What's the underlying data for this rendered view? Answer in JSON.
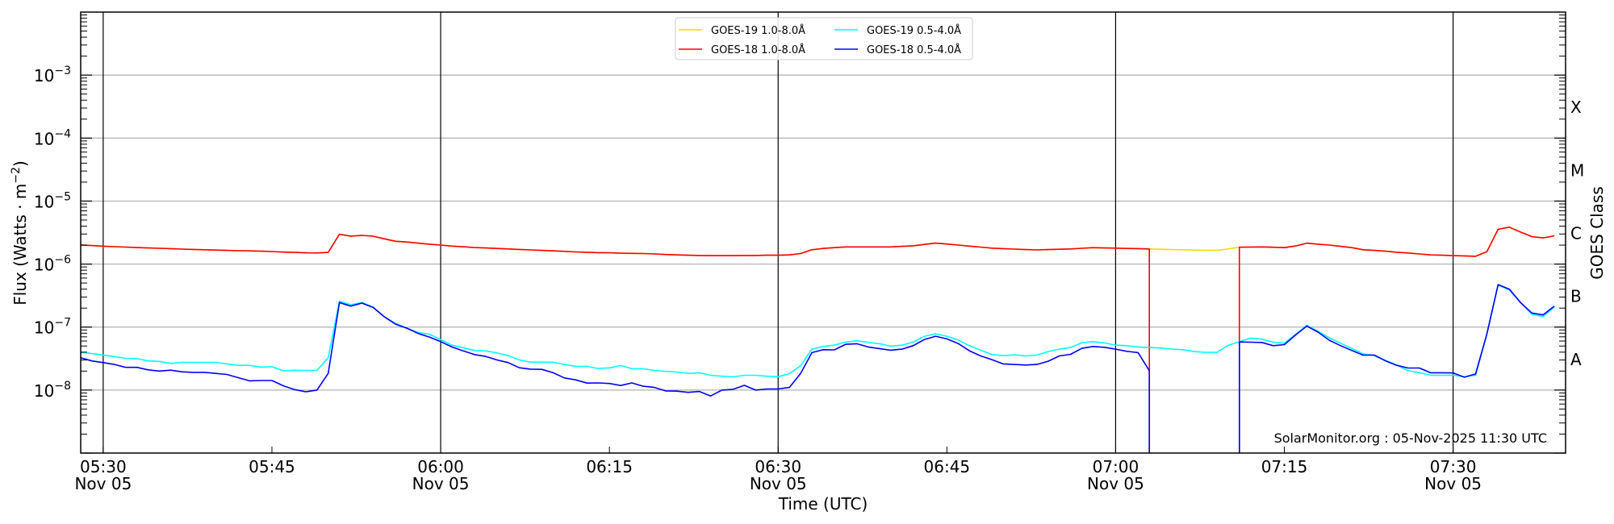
{
  "chart_data": {
    "type": "line",
    "title": "",
    "xlabel": "Time (UTC)",
    "ylabel": "Flux (Watts · m",
    "ylabel_sup": "−2",
    "ylabel_end": ")",
    "right_label": "GOES Class",
    "xlim": [
      "05:28",
      "07:40"
    ],
    "ylim": [
      1e-09,
      0.01
    ],
    "yscale": "log",
    "grid": "horizontal decades",
    "legend_position": "top-center",
    "y_ticks": [
      {
        "value": 1e-08,
        "base": "10",
        "exp": "−8"
      },
      {
        "value": 1e-07,
        "base": "10",
        "exp": "−7"
      },
      {
        "value": 1e-06,
        "base": "10",
        "exp": "−6"
      },
      {
        "value": 1e-05,
        "base": "10",
        "exp": "−5"
      },
      {
        "value": 0.0001,
        "base": "10",
        "exp": "−4"
      },
      {
        "value": 0.001,
        "base": "10",
        "exp": "−3"
      }
    ],
    "x_ticks": [
      {
        "time": "05:30",
        "label": "05:30",
        "date": "Nov 05"
      },
      {
        "time": "05:45",
        "label": "05:45",
        "date": ""
      },
      {
        "time": "06:00",
        "label": "06:00",
        "date": "Nov 05"
      },
      {
        "time": "06:15",
        "label": "06:15",
        "date": ""
      },
      {
        "time": "06:30",
        "label": "06:30",
        "date": "Nov 05"
      },
      {
        "time": "06:45",
        "label": "06:45",
        "date": ""
      },
      {
        "time": "07:00",
        "label": "07:00",
        "date": "Nov 05"
      },
      {
        "time": "07:15",
        "label": "07:15",
        "date": ""
      },
      {
        "time": "07:30",
        "label": "07:30",
        "date": "Nov 05"
      }
    ],
    "class_labels": [
      {
        "label": "X",
        "value": 0.000316
      },
      {
        "label": "M",
        "value": 3.16e-05
      },
      {
        "label": "C",
        "value": 3.16e-06
      },
      {
        "label": "B",
        "value": 3.16e-07
      },
      {
        "label": "A",
        "value": 3.16e-08
      }
    ],
    "annotation": "SolarMonitor.org : 05-Nov-2025 11:30 UTC",
    "series_start": "05:28",
    "series_interval_min": 1,
    "series": [
      {
        "name": "GOES-19 1.0-8.0Å",
        "color": "#ffd700",
        "scale": 1e-06,
        "values": [
          2.01,
          1.97,
          1.92,
          1.89,
          1.86,
          1.83,
          1.8,
          1.78,
          1.76,
          1.73,
          1.71,
          1.69,
          1.67,
          1.65,
          1.63,
          1.62,
          1.6,
          1.58,
          1.55,
          1.53,
          1.51,
          1.5,
          1.53,
          2.98,
          2.78,
          2.85,
          2.77,
          2.51,
          2.3,
          2.24,
          2.15,
          2.07,
          2.0,
          1.93,
          1.88,
          1.83,
          1.8,
          1.77,
          1.74,
          1.71,
          1.68,
          1.65,
          1.62,
          1.59,
          1.56,
          1.54,
          1.52,
          1.51,
          1.49,
          1.48,
          1.47,
          1.45,
          1.42,
          1.4,
          1.38,
          1.37,
          1.36,
          1.36,
          1.36,
          1.37,
          1.37,
          1.38,
          1.38,
          1.4,
          1.47,
          1.69,
          1.77,
          1.82,
          1.87,
          1.87,
          1.87,
          1.87,
          1.87,
          1.91,
          1.95,
          2.05,
          2.15,
          2.08,
          2.0,
          1.93,
          1.86,
          1.79,
          1.76,
          1.73,
          1.7,
          1.68,
          1.7,
          1.72,
          1.74,
          1.78,
          1.82,
          1.8,
          1.79,
          1.77,
          1.76,
          1.74,
          1.72,
          1.7,
          1.69,
          1.67,
          1.66,
          1.65,
          1.74,
          1.85,
          1.86,
          1.87,
          1.85,
          1.82,
          1.94,
          2.15,
          2.07,
          2.0,
          1.91,
          1.82,
          1.69,
          1.65,
          1.6,
          1.54,
          1.5,
          1.45,
          1.4,
          1.38,
          1.36,
          1.35,
          1.33,
          1.57,
          3.56,
          3.85,
          3.22,
          2.73,
          2.6,
          2.81
        ]
      },
      {
        "name": "GOES-18 1.0-8.0Å",
        "color": "#ff0000",
        "scale": 1e-06,
        "values": [
          2.01,
          1.97,
          1.92,
          1.89,
          1.86,
          1.83,
          1.8,
          1.78,
          1.76,
          1.73,
          1.71,
          1.69,
          1.67,
          1.65,
          1.63,
          1.62,
          1.6,
          1.58,
          1.55,
          1.53,
          1.51,
          1.5,
          1.53,
          2.98,
          2.78,
          2.85,
          2.77,
          2.51,
          2.3,
          2.24,
          2.15,
          2.07,
          2.0,
          1.93,
          1.88,
          1.83,
          1.8,
          1.77,
          1.74,
          1.71,
          1.68,
          1.65,
          1.62,
          1.59,
          1.56,
          1.54,
          1.52,
          1.51,
          1.49,
          1.48,
          1.47,
          1.45,
          1.42,
          1.4,
          1.38,
          1.37,
          1.36,
          1.36,
          1.36,
          1.37,
          1.37,
          1.38,
          1.38,
          1.4,
          1.47,
          1.69,
          1.77,
          1.82,
          1.87,
          1.87,
          1.87,
          1.87,
          1.87,
          1.91,
          1.95,
          2.05,
          2.15,
          2.08,
          2.0,
          1.93,
          1.86,
          1.79,
          1.76,
          1.73,
          1.7,
          1.68,
          1.7,
          1.72,
          1.74,
          1.78,
          1.82,
          1.8,
          1.79,
          1.77,
          1.76,
          1.74,
          0,
          0,
          0,
          0,
          0,
          0,
          0,
          1.85,
          1.86,
          1.87,
          1.85,
          1.82,
          1.94,
          2.15,
          2.07,
          2.0,
          1.91,
          1.82,
          1.69,
          1.65,
          1.6,
          1.54,
          1.5,
          1.45,
          1.4,
          1.38,
          1.36,
          1.35,
          1.33,
          1.57,
          3.56,
          3.85,
          3.22,
          2.73,
          2.6,
          2.81
        ]
      },
      {
        "name": "GOES-19 0.5-4.0Å",
        "color": "#00ffff",
        "scale": 1e-08,
        "values": [
          3.97,
          3.8,
          3.6,
          3.4,
          3.19,
          3.15,
          2.9,
          2.85,
          2.65,
          2.75,
          2.75,
          2.75,
          2.75,
          2.6,
          2.47,
          2.47,
          2.31,
          2.35,
          2.03,
          2.06,
          2.05,
          2.05,
          3.26,
          25.7,
          22.6,
          24.5,
          20.7,
          14.5,
          11.4,
          9.6,
          8.2,
          7.7,
          6.36,
          5.17,
          4.7,
          4.25,
          4.2,
          3.89,
          3.52,
          3.01,
          2.78,
          2.78,
          2.76,
          2.55,
          2.38,
          2.38,
          2.2,
          2.25,
          2.45,
          2.18,
          2.18,
          2.05,
          1.98,
          1.93,
          1.84,
          1.88,
          1.72,
          1.66,
          1.62,
          1.72,
          1.72,
          1.66,
          1.63,
          1.82,
          2.43,
          4.46,
          4.92,
          5.17,
          5.77,
          6.06,
          5.72,
          5.43,
          4.98,
          5.17,
          5.77,
          7.16,
          7.82,
          7.16,
          6.24,
          5.07,
          4.29,
          3.66,
          3.52,
          3.62,
          3.48,
          3.59,
          4.08,
          4.46,
          4.73,
          5.65,
          5.87,
          5.6,
          5.17,
          5.07,
          4.83,
          4.73,
          4.65,
          4.46,
          4.37,
          4.08,
          3.97,
          3.97,
          5.12,
          5.87,
          6.68,
          6.43,
          5.77,
          5.55,
          7.7,
          10.6,
          8.55,
          6.74,
          5.55,
          4.55,
          3.77,
          3.52,
          2.95,
          2.5,
          2.03,
          1.89,
          1.72,
          1.72,
          1.72,
          1.63,
          1.72,
          7.7,
          46.5,
          39,
          24.5,
          16,
          14.7,
          20.7
        ]
      },
      {
        "name": "GOES-18 0.5-4.0Å",
        "color": "#0000ff",
        "scale": 1e-08,
        "values": [
          3.26,
          2.9,
          2.73,
          2.55,
          2.29,
          2.29,
          2.09,
          2.0,
          2.07,
          1.95,
          1.91,
          1.91,
          1.84,
          1.77,
          1.57,
          1.4,
          1.42,
          1.42,
          1.17,
          1.02,
          0.94,
          1.0,
          1.84,
          24.5,
          21.5,
          24,
          20.5,
          14.5,
          11.1,
          9.6,
          7.9,
          6.95,
          5.87,
          4.83,
          4.2,
          3.66,
          3.42,
          3.01,
          2.73,
          2.26,
          2.15,
          2.13,
          1.88,
          1.56,
          1.45,
          1.29,
          1.3,
          1.27,
          1.18,
          1.3,
          1.15,
          1.1,
          0.97,
          0.96,
          0.92,
          0.95,
          0.805,
          1.0,
          1.03,
          1.19,
          1.0,
          1.04,
          1.04,
          1.1,
          1.84,
          3.93,
          4.37,
          4.34,
          5.32,
          5.43,
          4.83,
          4.55,
          4.29,
          4.46,
          5.07,
          6.36,
          7.16,
          6.49,
          5.48,
          4.21,
          3.48,
          3.04,
          2.6,
          2.55,
          2.5,
          2.55,
          2.87,
          3.48,
          3.7,
          4.59,
          4.92,
          4.78,
          4.46,
          4.12,
          3.93,
          2.03,
          0,
          0,
          0,
          0,
          0,
          0,
          0,
          5.8,
          5.75,
          5.7,
          5.07,
          5.27,
          7.5,
          10.4,
          8.3,
          6.17,
          5.07,
          4.25,
          3.59,
          3.59,
          2.9,
          2.47,
          2.24,
          2.24,
          1.88,
          1.88,
          1.87,
          1.6,
          1.8,
          7.7,
          47.3,
          40,
          24.5,
          16.7,
          15.6,
          21.5
        ]
      }
    ]
  }
}
